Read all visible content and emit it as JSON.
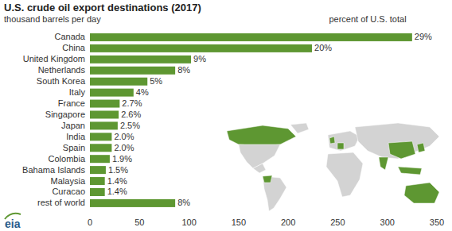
{
  "chart_data": {
    "type": "bar",
    "orientation": "horizontal",
    "title": "U.S. crude oil export destinations (2017)",
    "subtitle": "thousand barrels per day",
    "annotation": "percent of U.S. total",
    "source_logo": "eia",
    "categories": [
      "Canada",
      "China",
      "United Kingdom",
      "Netherlands",
      "South Korea",
      "Italy",
      "France",
      "Singapore",
      "Japan",
      "India",
      "Spain",
      "Colombia",
      "Bahama Islands",
      "Malaysia",
      "Curacao",
      "rest of world"
    ],
    "values": [
      325,
      224,
      102,
      86,
      58,
      44,
      30,
      29,
      28,
      22,
      22,
      20,
      16,
      15,
      15,
      86
    ],
    "percent_labels": [
      "29%",
      "20%",
      "9%",
      "8%",
      "5%",
      "4%",
      "2.7%",
      "2.6%",
      "2.5%",
      "2.0%",
      "2.0%",
      "1.9%",
      "1.5%",
      "1.4%",
      "1.4%",
      "8%"
    ],
    "color": "#5e9732",
    "xlim": [
      0,
      350
    ],
    "xticks": [
      0,
      50,
      100,
      150,
      200,
      250,
      300,
      350
    ],
    "grid": false,
    "tick_labels": "x"
  }
}
